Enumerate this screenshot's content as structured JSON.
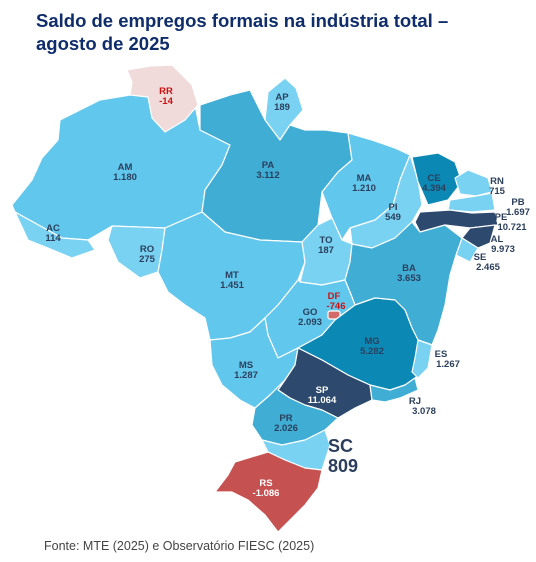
{
  "title": {
    "line1": "Saldo de empregos formais na indústria total –",
    "line2": "agosto de 2025"
  },
  "source": "Fonte: MTE (2025) e Observatório FIESC (2025)",
  "colors": {
    "pale": "#79d2f2",
    "light": "#62c7ec",
    "mid": "#3fadd4",
    "strong": "#0b89b4",
    "dark": "#2d4a6e",
    "negative": "#c65151",
    "negative_pale": "#f0dada",
    "label_dark": "#2b3f5c",
    "label_neg": "#cc1111"
  },
  "states": [
    {
      "uf": "RR",
      "value": "-14"
    },
    {
      "uf": "AP",
      "value": "189"
    },
    {
      "uf": "AM",
      "value": "1.180"
    },
    {
      "uf": "PA",
      "value": "3.112"
    },
    {
      "uf": "MA",
      "value": "1.210"
    },
    {
      "uf": "CE",
      "value": "4.394"
    },
    {
      "uf": "RN",
      "value": "715"
    },
    {
      "uf": "PB",
      "value": "1.697"
    },
    {
      "uf": "PE",
      "value": "10.721"
    },
    {
      "uf": "AL",
      "value": "9.973"
    },
    {
      "uf": "SE",
      "value": "2.465"
    },
    {
      "uf": "PI",
      "value": "549"
    },
    {
      "uf": "AC",
      "value": "114"
    },
    {
      "uf": "RO",
      "value": "275"
    },
    {
      "uf": "TO",
      "value": "187"
    },
    {
      "uf": "BA",
      "value": "3.653"
    },
    {
      "uf": "MT",
      "value": "1.451"
    },
    {
      "uf": "DF",
      "value": "-746"
    },
    {
      "uf": "GO",
      "value": "2.093"
    },
    {
      "uf": "MG",
      "value": "5.282"
    },
    {
      "uf": "MS",
      "value": "1.287"
    },
    {
      "uf": "ES",
      "value": "1.267"
    },
    {
      "uf": "SP",
      "value": "11.064"
    },
    {
      "uf": "RJ",
      "value": "3.078"
    },
    {
      "uf": "PR",
      "value": "2.026"
    },
    {
      "uf": "SC",
      "value": "809"
    },
    {
      "uf": "RS",
      "value": "-1.086"
    }
  ]
}
